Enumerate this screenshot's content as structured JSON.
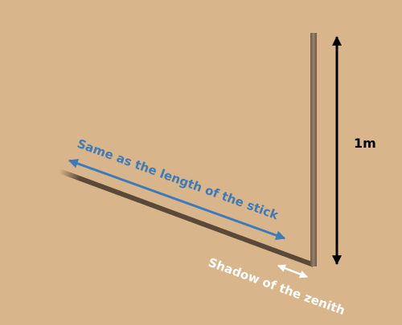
{
  "diagram": {
    "height_label": "1m",
    "length_label": "Same as the length of the stick",
    "shadow_label": "Shadow of the zenith"
  },
  "colors": {
    "background": "#d9b58c",
    "stick": "#8a7058",
    "shadow": "#5a4838",
    "length_arrow": "#3d7ab8",
    "height_arrow": "#000000",
    "shadow_arrow": "#ffffff",
    "shadow_text": "#ffffff"
  }
}
